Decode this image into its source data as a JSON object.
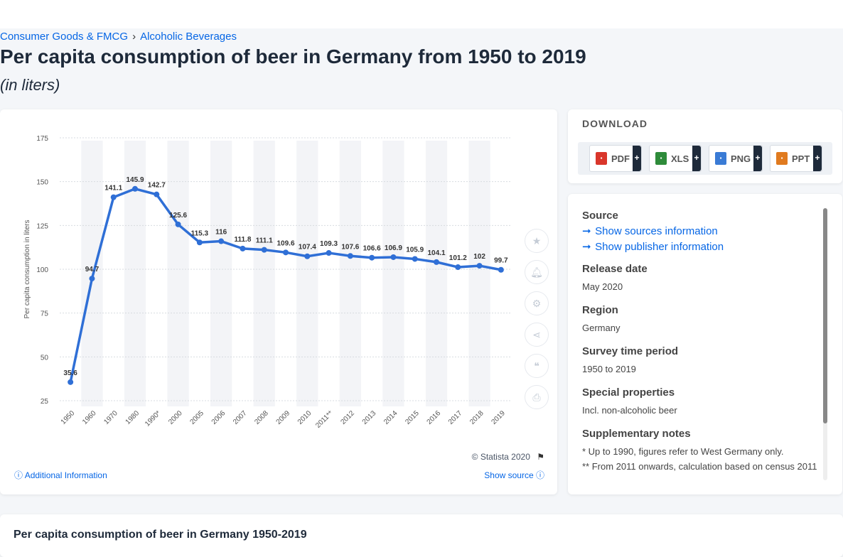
{
  "breadcrumb": [
    "Consumer Goods & FMCG",
    "Alcoholic Beverages"
  ],
  "breadcrumb_sep": "›",
  "title": "Per capita consumption of beer in Germany from 1950 to 2019",
  "subtitle": "(in liters)",
  "chart_data": {
    "type": "line",
    "categories": [
      "1950",
      "1960",
      "1970",
      "1980",
      "1990*",
      "2000",
      "2005",
      "2006",
      "2007",
      "2008",
      "2009",
      "2010",
      "2011**",
      "2012",
      "2013",
      "2014",
      "2015",
      "2016",
      "2017",
      "2018",
      "2019"
    ],
    "values": [
      35.6,
      94.7,
      141.1,
      145.9,
      142.7,
      125.6,
      115.3,
      116,
      111.8,
      111.1,
      109.6,
      107.4,
      109.3,
      107.6,
      106.6,
      106.9,
      105.9,
      104.1,
      101.2,
      102,
      99.7
    ],
    "value_labels": [
      "35.6",
      "94.7",
      "141.1",
      "145.9",
      "142.7",
      "125.6",
      "115.3",
      "116",
      "111.8",
      "111.1",
      "109.6",
      "107.4",
      "109.3",
      "107.6",
      "106.6",
      "106.9",
      "105.9",
      "104.1",
      "101.2",
      "102",
      "99.7"
    ],
    "ylabel": "Per capita consumption in liters",
    "xlabel": "",
    "yticks": [
      25,
      50,
      75,
      100,
      125,
      150,
      175
    ],
    "ylim": [
      25,
      175
    ],
    "line_color": "#2f6fd6",
    "band_color": "#f3f4f7",
    "grid": true
  },
  "chart_footer": {
    "copyright": "© Statista 2020",
    "additional_info": "Additional Information",
    "show_source": "Show source"
  },
  "tools": [
    "star-icon",
    "bell-icon",
    "gear-icon",
    "share-icon",
    "quote-icon",
    "print-icon"
  ],
  "download": {
    "title": "DOWNLOAD",
    "buttons": [
      {
        "label": "PDF",
        "color": "#d9362b"
      },
      {
        "label": "XLS",
        "color": "#2e8b3a"
      },
      {
        "label": "PNG",
        "color": "#3a7bd5"
      },
      {
        "label": "PPT",
        "color": "#e07a1f"
      }
    ],
    "plus": "+"
  },
  "info": {
    "source_h": "Source",
    "source_link": "Show sources information",
    "publisher_link": "Show publisher information",
    "release_h": "Release date",
    "release_v": "May 2020",
    "region_h": "Region",
    "region_v": "Germany",
    "survey_h": "Survey time period",
    "survey_v": "1950 to 2019",
    "special_h": "Special properties",
    "special_v": "Incl. non-alcoholic beer",
    "supp_h": "Supplementary notes",
    "supp_v1": "* Up to 1990, figures refer to West Germany only.",
    "supp_v2": "** From 2011 onwards, calculation based on census 2011"
  },
  "bottom_title": "Per capita consumption of beer in Germany 1950-2019"
}
